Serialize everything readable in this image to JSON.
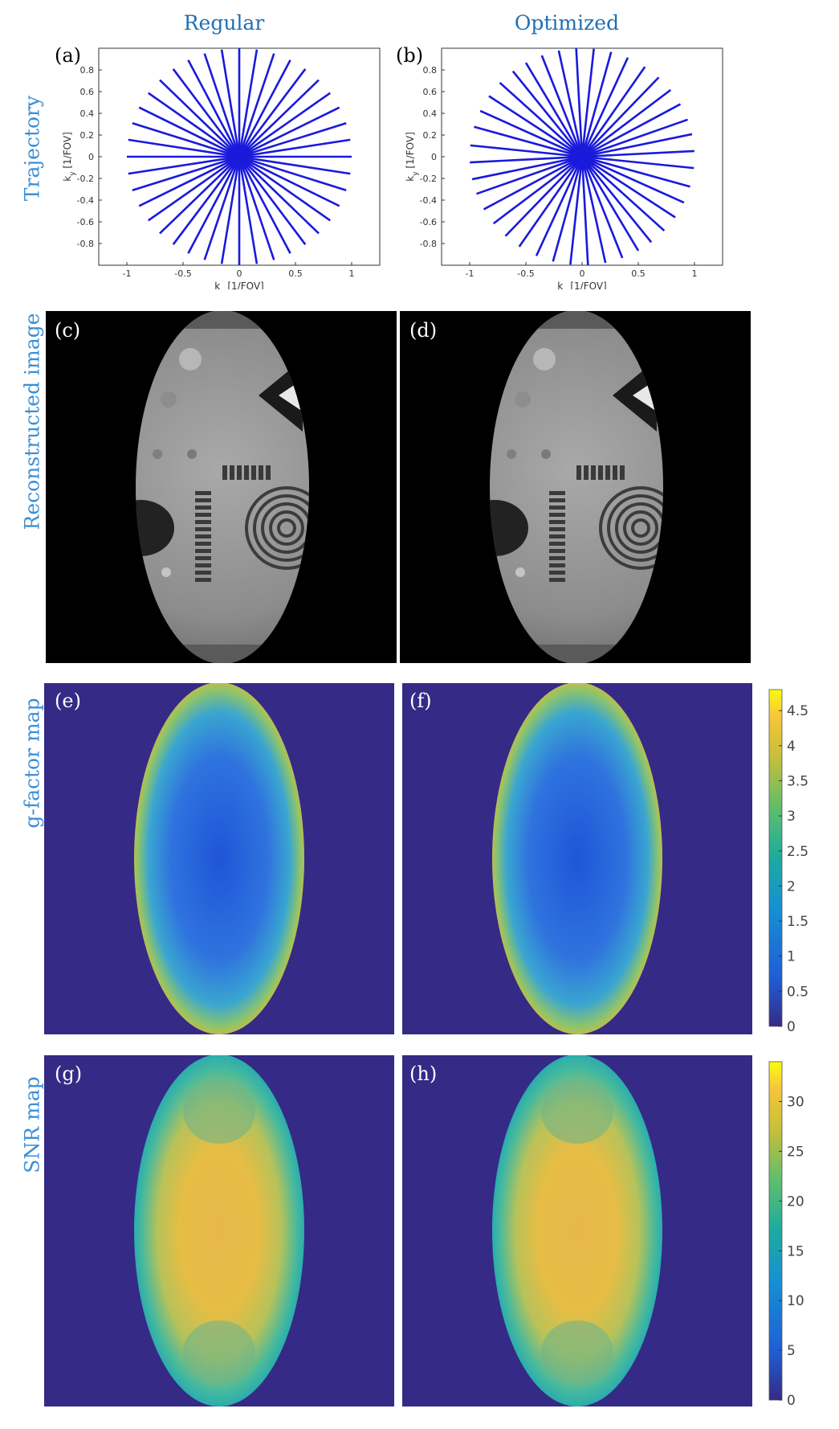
{
  "columns": {
    "left": "Regular",
    "right": "Optimized"
  },
  "rows": {
    "trajectory": "Trajectory",
    "reconstructed": "Reconstructed image",
    "gfactor": "g-factor map",
    "snr": "SNR map"
  },
  "panel_labels": {
    "a": "(a)",
    "b": "(b)",
    "c": "(c)",
    "d": "(d)",
    "e": "(e)",
    "f": "(f)",
    "g": "(g)",
    "h": "(h)"
  },
  "axes": {
    "xlabel_k": "k",
    "xlabel_sub": "x",
    "xlabel_unit": "[1/FOV]",
    "ylabel_k": "k",
    "ylabel_sub": "y",
    "ylabel_unit": "[1/FOV]",
    "xticks": [
      "-1",
      "-0.5",
      "0",
      "0.5",
      "1"
    ],
    "yticks": [
      "0.8",
      "0.6",
      "0.4",
      "0.2",
      "0",
      "-0.2",
      "-0.4",
      "-0.6",
      "-0.8"
    ]
  },
  "colorbars": {
    "gfactor": {
      "ticks": [
        "4.5",
        "4",
        "3.5",
        "3",
        "2.5",
        "2",
        "1.5",
        "1",
        "0.5",
        "0"
      ],
      "range": [
        0,
        4.8
      ]
    },
    "snr": {
      "ticks": [
        "30",
        "25",
        "20",
        "15",
        "10",
        "5",
        "0"
      ],
      "range": [
        0,
        34
      ]
    }
  },
  "colors": {
    "trajectory_line": "#1a1adb",
    "background_navy": "#352a86",
    "title_blue": "#1f6fb4"
  },
  "chart_data": [
    {
      "type": "line",
      "title": "Regular",
      "xlabel": "kx [1/FOV]",
      "ylabel": "ky [1/FOV]",
      "xlim": [
        -1.25,
        1.25
      ],
      "ylim": [
        -1.0,
        1.0
      ],
      "spokes_deg": [
        0,
        9,
        18,
        27,
        36,
        45,
        54,
        63,
        72,
        81,
        90,
        99,
        108,
        117,
        126,
        135,
        144,
        153,
        162,
        171
      ]
    },
    {
      "type": "line",
      "title": "Optimized",
      "xlabel": "kx [1/FOV]",
      "ylabel": "ky [1/FOV]",
      "xlim": [
        -1.25,
        1.25
      ],
      "ylim": [
        -1.0,
        1.0
      ],
      "spokes_deg": [
        3,
        12,
        20,
        29,
        38,
        47,
        56,
        66,
        75,
        84,
        93,
        102,
        111,
        120,
        128,
        137,
        146,
        155,
        164,
        174
      ]
    }
  ]
}
